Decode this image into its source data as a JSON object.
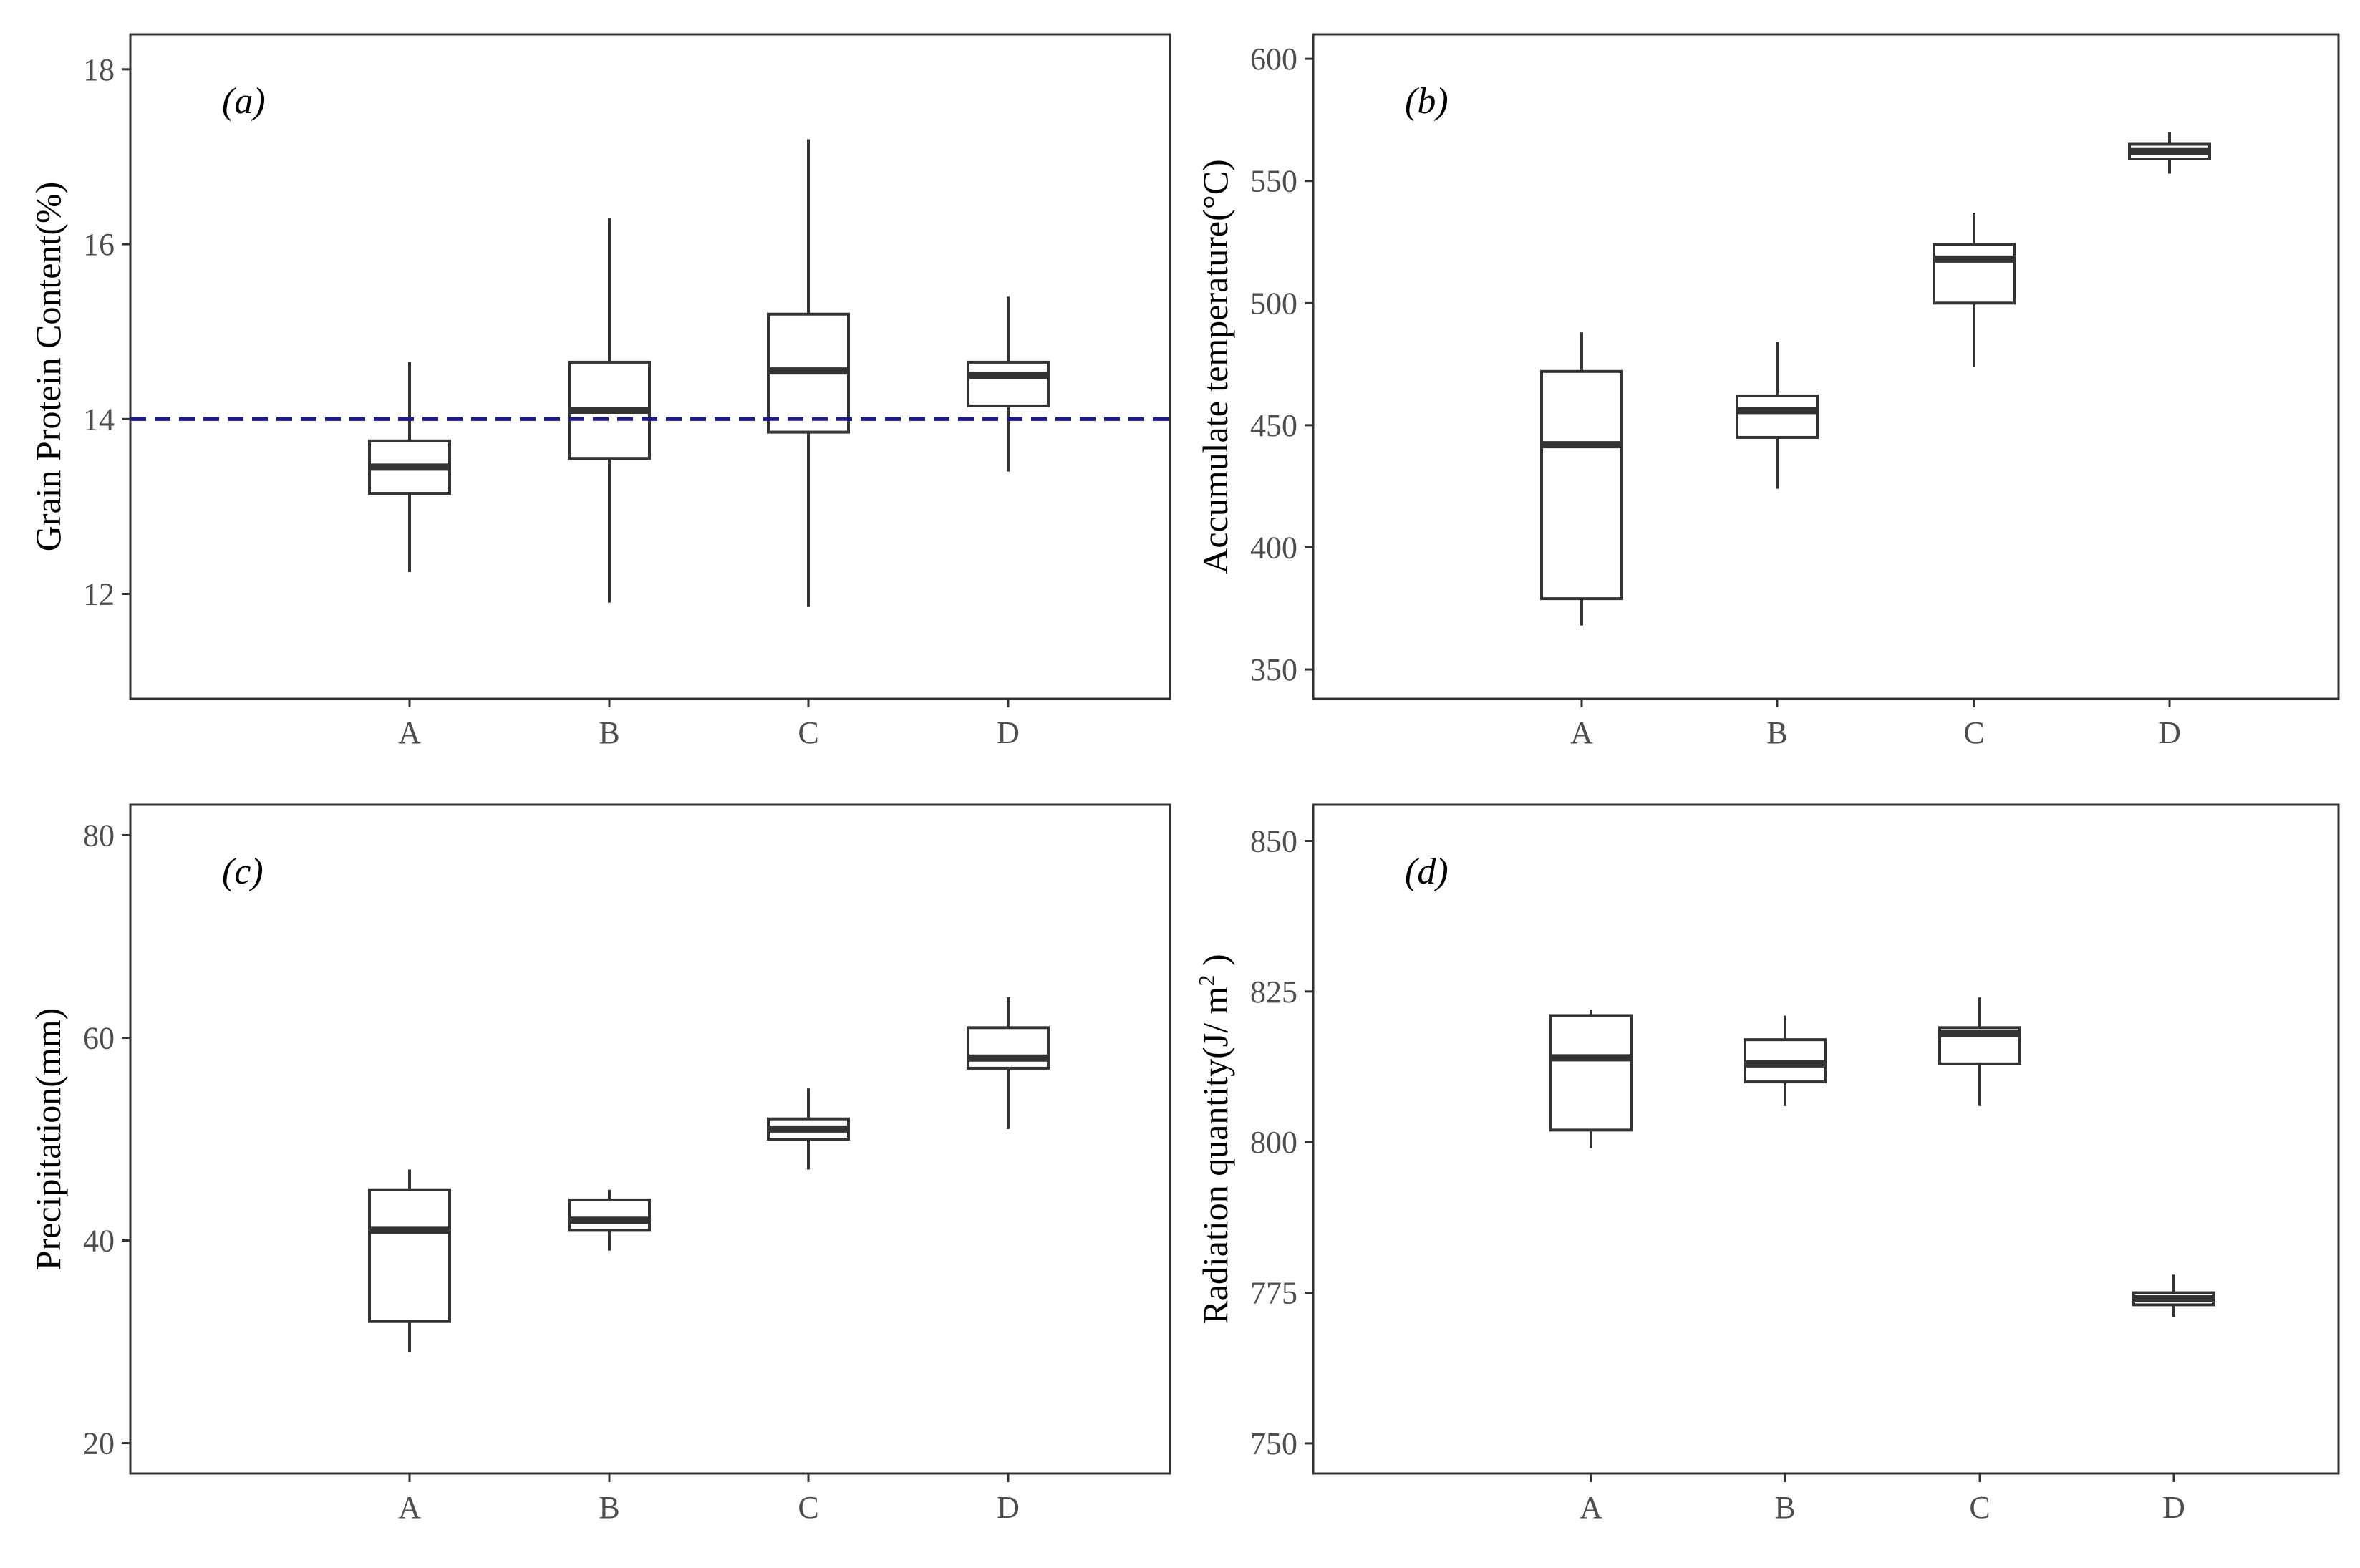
{
  "figure": {
    "colors": {
      "box": "#333333",
      "panel_border": "#333333",
      "reference_line": "#1a1a8c",
      "tick_text": "#4d4d4d"
    }
  },
  "chart_data": [
    {
      "type": "boxplot",
      "panel_label": "(a)",
      "ylabel": "Grain Protein Content(%)",
      "ylim": [
        10.8,
        18.4
      ],
      "yticks": [
        12,
        14,
        16,
        18
      ],
      "categories": [
        "A",
        "B",
        "C",
        "D"
      ],
      "boxes": [
        {
          "category": "A",
          "min": 12.25,
          "q1": 13.15,
          "median": 13.45,
          "q3": 13.75,
          "max": 14.65
        },
        {
          "category": "B",
          "min": 11.9,
          "q1": 13.55,
          "median": 14.1,
          "q3": 14.65,
          "max": 16.3
        },
        {
          "category": "C",
          "min": 11.85,
          "q1": 13.85,
          "median": 14.55,
          "q3": 15.2,
          "max": 17.2
        },
        {
          "category": "D",
          "min": 13.4,
          "q1": 14.15,
          "median": 14.5,
          "q3": 14.65,
          "max": 15.4
        }
      ],
      "reference_line": {
        "y": 14,
        "style": "dashed"
      }
    },
    {
      "type": "boxplot",
      "panel_label": "(b)",
      "ylabel": "Accumulate temperature(°C)",
      "ylim": [
        338,
        610
      ],
      "yticks": [
        350,
        400,
        450,
        500,
        550,
        600
      ],
      "categories": [
        "A",
        "B",
        "C",
        "D"
      ],
      "boxes": [
        {
          "category": "A",
          "min": 368,
          "q1": 379,
          "median": 442,
          "q3": 472,
          "max": 488
        },
        {
          "category": "B",
          "min": 424,
          "q1": 445,
          "median": 456,
          "q3": 462,
          "max": 484
        },
        {
          "category": "C",
          "min": 474,
          "q1": 500,
          "median": 518,
          "q3": 524,
          "max": 537
        },
        {
          "category": "D",
          "min": 553,
          "q1": 559,
          "median": 562,
          "q3": 565,
          "max": 570
        }
      ]
    },
    {
      "type": "boxplot",
      "panel_label": "(c)",
      "ylabel": "Precipitation(mm)",
      "ylim": [
        17,
        83
      ],
      "yticks": [
        20,
        40,
        60,
        80
      ],
      "categories": [
        "A",
        "B",
        "C",
        "D"
      ],
      "boxes": [
        {
          "category": "A",
          "min": 29,
          "q1": 32,
          "median": 41,
          "q3": 45,
          "max": 47
        },
        {
          "category": "B",
          "min": 39,
          "q1": 41,
          "median": 42,
          "q3": 44,
          "max": 45
        },
        {
          "category": "C",
          "min": 47,
          "q1": 50,
          "median": 51,
          "q3": 52,
          "max": 55
        },
        {
          "category": "D",
          "min": 51,
          "q1": 57,
          "median": 58,
          "q3": 61,
          "max": 64
        }
      ]
    },
    {
      "type": "boxplot",
      "panel_label": "(d)",
      "ylabel": "Radiation quantity(J/ m",
      "ylabel_superscript": "2",
      "ylabel_suffix": " )",
      "ylim": [
        745,
        856
      ],
      "yticks": [
        750,
        775,
        800,
        825,
        850
      ],
      "categories": [
        "A",
        "B",
        "C",
        "D"
      ],
      "boxes": [
        {
          "category": "A",
          "min": 799,
          "q1": 802,
          "median": 814,
          "q3": 821,
          "max": 822
        },
        {
          "category": "B",
          "min": 806,
          "q1": 810,
          "median": 813,
          "q3": 817,
          "max": 821
        },
        {
          "category": "C",
          "min": 806,
          "q1": 813,
          "median": 818,
          "q3": 819,
          "max": 824
        },
        {
          "category": "D",
          "min": 771,
          "q1": 773,
          "median": 774,
          "q3": 775,
          "max": 778
        }
      ]
    }
  ]
}
